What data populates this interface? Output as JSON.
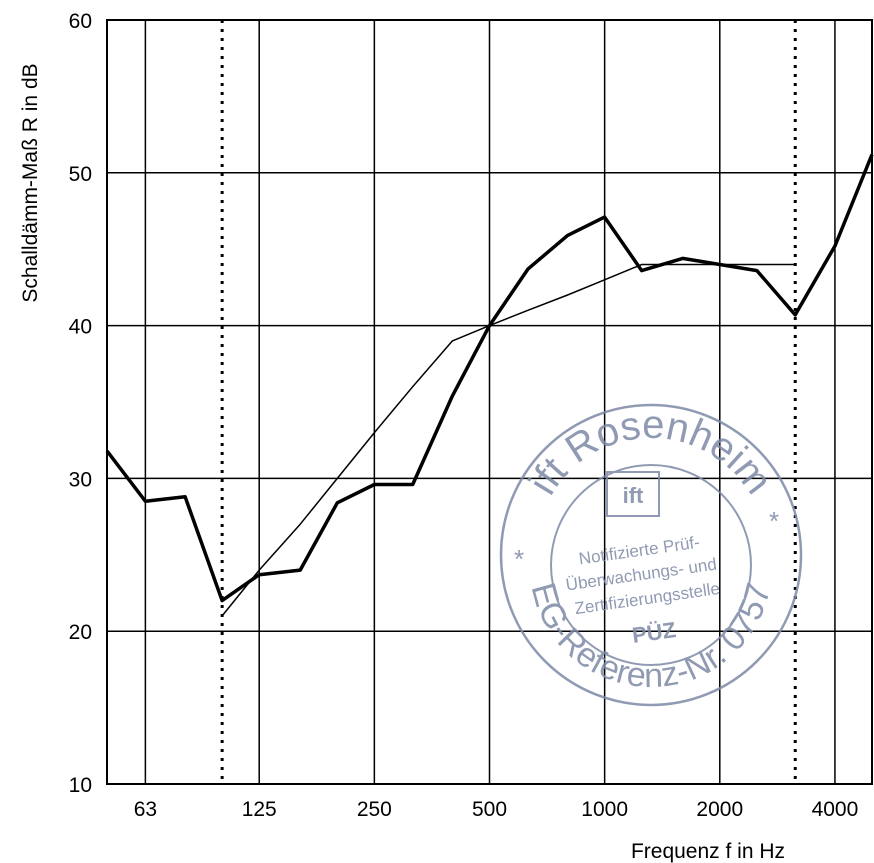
{
  "chart_data": {
    "type": "line",
    "xlabel": "Frequenz f in Hz",
    "ylabel": "Schalldämm-Maß R in dB",
    "xscale": "log",
    "xlim": [
      50,
      5000
    ],
    "ylim": [
      10,
      60
    ],
    "grid": true,
    "x_ticks": [
      {
        "value": 63,
        "label": "63"
      },
      {
        "value": 125,
        "label": "125"
      },
      {
        "value": 250,
        "label": "250"
      },
      {
        "value": 500,
        "label": "500"
      },
      {
        "value": 1000,
        "label": "1000"
      },
      {
        "value": 2000,
        "label": "2000"
      },
      {
        "value": 4000,
        "label": "4000"
      }
    ],
    "y_ticks": [
      {
        "value": 10,
        "label": "10"
      },
      {
        "value": 20,
        "label": "20"
      },
      {
        "value": 30,
        "label": "30"
      },
      {
        "value": 40,
        "label": "40"
      },
      {
        "value": 50,
        "label": "50"
      },
      {
        "value": 60,
        "label": "60"
      }
    ],
    "x_gridlines": [
      63,
      125,
      250,
      500,
      1000,
      2000,
      4000
    ],
    "y_gridlines": [
      20,
      30,
      40,
      50
    ],
    "dotted_lines_x": [
      100,
      3150
    ],
    "series": [
      {
        "style": "thick",
        "x": [
          50,
          63,
          80,
          100,
          125,
          160,
          200,
          250,
          315,
          400,
          500,
          630,
          800,
          1000,
          1250,
          1600,
          2000,
          2500,
          3150,
          4000,
          5000
        ],
        "y": [
          31.8,
          28.5,
          28.8,
          22.0,
          23.7,
          24.0,
          28.4,
          29.6,
          29.6,
          35.4,
          40.0,
          43.7,
          45.9,
          47.1,
          43.6,
          44.4,
          44.0,
          43.6,
          40.7,
          45.2,
          51.2
        ]
      },
      {
        "style": "thin",
        "x": [
          100,
          125,
          160,
          200,
          250,
          315,
          400,
          500,
          630,
          800,
          1000,
          1250,
          1600,
          2000,
          2500,
          3150
        ],
        "y": [
          21,
          24,
          27,
          30,
          33,
          36,
          39,
          40,
          41,
          42,
          43,
          44,
          44,
          44,
          44,
          44
        ]
      }
    ]
  },
  "stamp": {
    "top_text": "ift Rosenheim",
    "logo_text": "ift",
    "line1": "Notifizierte Prüf-",
    "line2": "Überwachungs- und",
    "line3": "Zertifizierungsstelle",
    "center_text": "PÜZ",
    "bottom_text": "EG-Referenz-Nr. 0757",
    "star": "*"
  }
}
